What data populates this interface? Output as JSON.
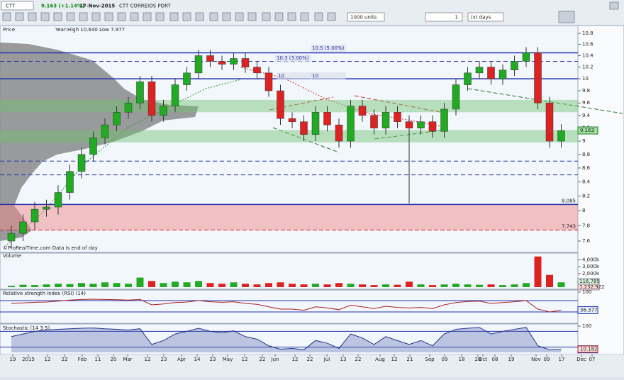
{
  "header": {
    "symbol": "CTT",
    "quote": "9.163 (+1.14%)",
    "date": "17-Nov-2015",
    "name": "CTT CORREIOS PORT",
    "units": "1000 units",
    "period": "1",
    "period_unit": "(x) days"
  },
  "price_chart": {
    "title": "Price",
    "info": "Year:High 10.640 Low 7.977",
    "copyright": "©ProRealTime.com  Data is end of day",
    "log_scale": true,
    "ylim": [
      7.6,
      10.8
    ],
    "yticks": [
      7.6,
      7.8,
      8,
      8.2,
      8.4,
      8.6,
      8.8,
      9,
      9.2,
      9.4,
      9.6,
      9.8,
      10,
      10.2,
      10.4,
      10.6,
      10.8
    ],
    "open": [
      7.6,
      7.7,
      7.85,
      8.02,
      8.05,
      8.25,
      8.55,
      8.8,
      9.05,
      9.25,
      9.45,
      9.6,
      9.95,
      9.4,
      9.55,
      9.9,
      10.1,
      10.4,
      10.3,
      10.25,
      10.35,
      10.2,
      10.1,
      9.8,
      9.35,
      9.3,
      9.1,
      9.45,
      9.25,
      9.0,
      9.55,
      9.4,
      9.2,
      9.45,
      9.3,
      9.2,
      9.3,
      9.15,
      9.5,
      9.9,
      10.1,
      10.2,
      10.0,
      10.15,
      10.3,
      10.45,
      9.6,
      9.0
    ],
    "high": [
      7.8,
      7.95,
      8.12,
      8.15,
      8.35,
      8.65,
      8.9,
      9.15,
      9.35,
      9.55,
      9.7,
      10.05,
      10.05,
      9.65,
      10.0,
      10.2,
      10.5,
      10.5,
      10.4,
      10.45,
      10.45,
      10.3,
      10.2,
      9.9,
      9.45,
      9.4,
      9.55,
      9.55,
      9.35,
      9.65,
      9.65,
      9.5,
      9.55,
      9.55,
      9.4,
      9.4,
      9.4,
      9.6,
      10.0,
      10.2,
      10.3,
      10.3,
      10.25,
      10.4,
      10.55,
      10.55,
      9.7,
      9.26
    ],
    "low": [
      7.5,
      7.6,
      7.75,
      7.92,
      7.95,
      8.15,
      8.45,
      8.7,
      8.95,
      9.15,
      9.35,
      9.5,
      9.3,
      9.3,
      9.45,
      9.8,
      10.0,
      10.2,
      10.15,
      10.15,
      10.1,
      10.0,
      9.7,
      9.25,
      9.2,
      9.0,
      9.0,
      9.15,
      8.9,
      8.9,
      9.3,
      9.1,
      9.1,
      9.2,
      8.1,
      9.1,
      9.05,
      9.05,
      9.4,
      9.8,
      10.0,
      9.9,
      9.9,
      10.05,
      10.2,
      9.5,
      8.9,
      8.9
    ],
    "close": [
      7.7,
      7.85,
      8.02,
      8.05,
      8.25,
      8.55,
      8.8,
      9.05,
      9.25,
      9.45,
      9.6,
      9.95,
      9.4,
      9.55,
      9.9,
      10.1,
      10.4,
      10.3,
      10.25,
      10.35,
      10.2,
      10.1,
      9.8,
      9.35,
      9.3,
      9.1,
      9.45,
      9.25,
      9.0,
      9.55,
      9.4,
      9.2,
      9.45,
      9.3,
      9.2,
      9.3,
      9.15,
      9.5,
      9.9,
      10.1,
      10.2,
      10.0,
      10.15,
      10.3,
      10.45,
      9.6,
      9.0,
      9.16
    ],
    "last": 9.163,
    "solid_levels": [
      10.45,
      10,
      8.085
    ],
    "dashed_levels": [
      10.3,
      8.7,
      8.5
    ],
    "support_label": 8.085,
    "red_level": 7.743,
    "green_bands": [
      [
        9.45,
        9.65
      ],
      [
        8.98,
        9.17
      ]
    ],
    "red_band": [
      7.743,
      8.085
    ],
    "target_labels": [
      "10.3 (3.00%)",
      "10.5 (5.00%)",
      "10",
      "10"
    ]
  },
  "volume_chart": {
    "title": "Volume",
    "ylim": [
      0,
      5000000
    ],
    "yticks": [
      {
        "value": 1000000,
        "label": "1,000k"
      },
      {
        "value": 2000000,
        "label": "2,000k"
      },
      {
        "value": 3000000,
        "label": "3,000k"
      },
      {
        "value": 4000000,
        "label": "4,000k"
      }
    ],
    "values": [
      200000,
      350000,
      300000,
      400000,
      500000,
      450000,
      600000,
      500000,
      700000,
      600000,
      500000,
      1400000,
      900000,
      600000,
      800000,
      700000,
      900000,
      600000,
      500000,
      700000,
      500000,
      400000,
      600000,
      700000,
      500000,
      400000,
      500000,
      400000,
      600000,
      500000,
      400000,
      300000,
      400000,
      350000,
      800000,
      400000,
      300000,
      400000,
      500000,
      400000,
      350000,
      400000,
      300000,
      400000,
      600000,
      4500000,
      1800000,
      700000
    ],
    "badges": [
      "116,785",
      "1,232,922"
    ]
  },
  "rsi_chart": {
    "title": "Relative strength index (RSI) (14)",
    "ylim": [
      0,
      100
    ],
    "yticks": [
      100
    ],
    "levels": [
      70,
      30
    ],
    "values": [
      60,
      62,
      64,
      65,
      68,
      72,
      74,
      75,
      74,
      73,
      72,
      74,
      55,
      58,
      63,
      65,
      70,
      66,
      64,
      66,
      60,
      57,
      48,
      40,
      40,
      36,
      48,
      44,
      38,
      54,
      48,
      42,
      50,
      46,
      44,
      46,
      42,
      55,
      63,
      67,
      68,
      60,
      63,
      66,
      70,
      40,
      30,
      36.377
    ]
  },
  "stoch_chart": {
    "title": "Stochastic (14 3 5)",
    "ylim": [
      0,
      100
    ],
    "yticks": [
      100
    ],
    "levels": [
      80,
      20
    ],
    "values": [
      60,
      70,
      80,
      85,
      88,
      90,
      92,
      93,
      90,
      88,
      85,
      90,
      30,
      45,
      70,
      80,
      92,
      80,
      75,
      82,
      60,
      50,
      25,
      12,
      15,
      10,
      45,
      35,
      15,
      70,
      55,
      30,
      60,
      45,
      30,
      45,
      25,
      70,
      88,
      92,
      95,
      70,
      80,
      88,
      95,
      25,
      10,
      11.656
    ],
    "d_label": "10.182"
  },
  "time_axis": [
    "19",
    "2015",
    "12",
    "22",
    "Feb",
    "11",
    "20",
    "Mar",
    "12",
    "23",
    "Apr",
    "14",
    "23",
    "May",
    "12",
    "22",
    "Jun",
    "12",
    "22",
    "Jul",
    "13",
    "22",
    "Aug",
    "12",
    "21",
    "Sep",
    "09",
    "18",
    "28",
    "Oct",
    "08",
    "19",
    "Nov",
    "09",
    "17",
    "Dec",
    "07"
  ]
}
